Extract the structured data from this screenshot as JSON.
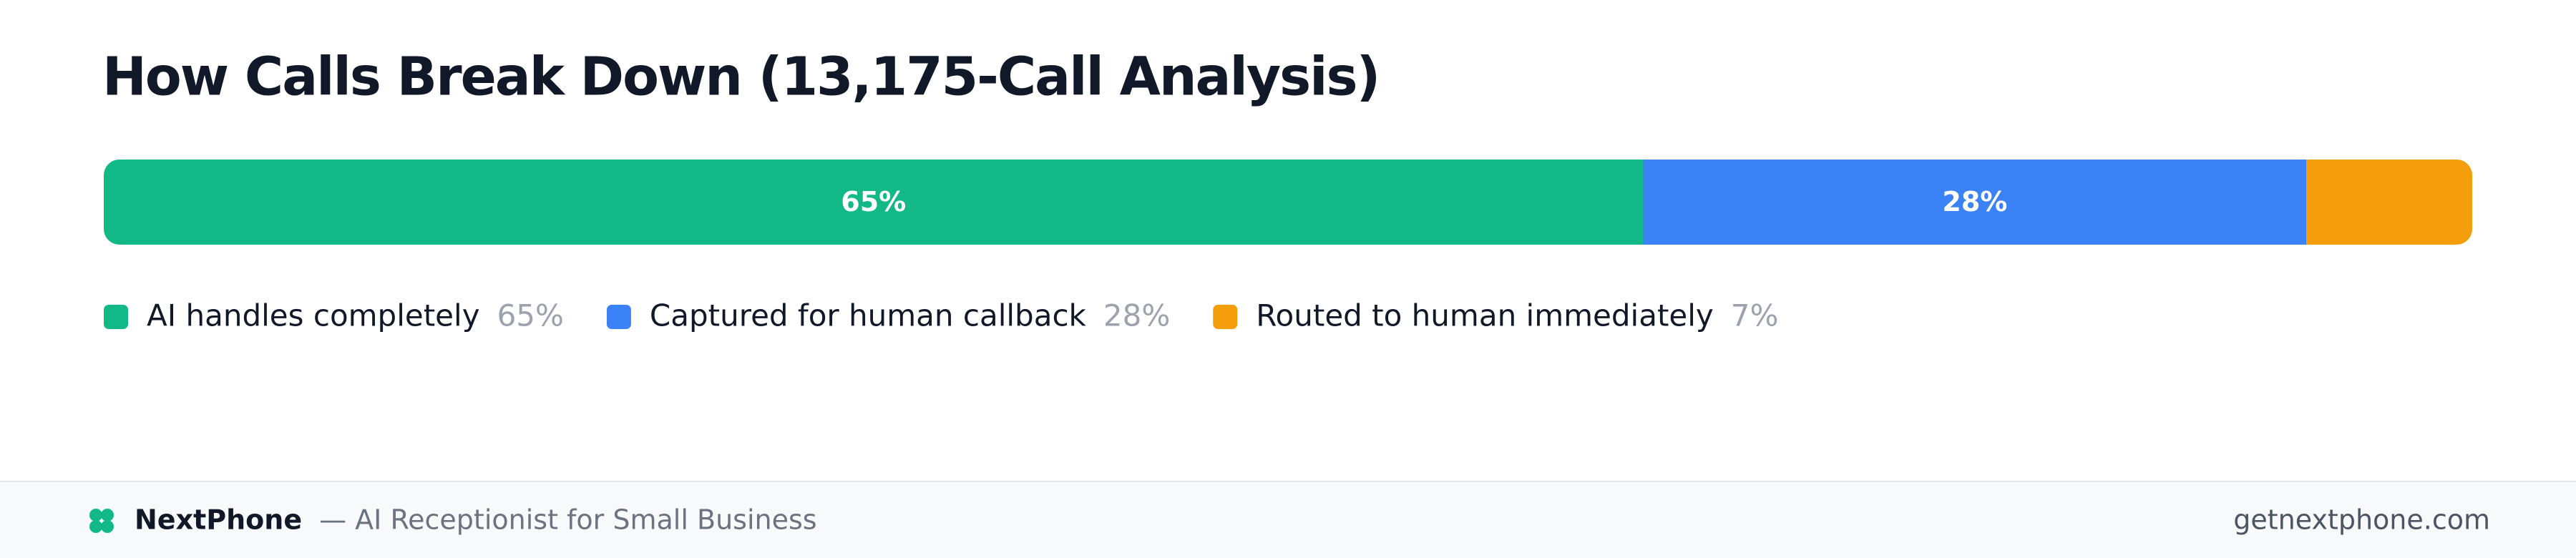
{
  "chart_data": {
    "type": "stacked-bar",
    "title": "How Calls Break Down (13,175-Call Analysis)",
    "categories": [
      "AI handles completely",
      "Captured for human callback",
      "Routed to human immediately"
    ],
    "values": [
      65,
      28,
      7
    ],
    "value_labels": [
      "65%",
      "28%",
      "7%"
    ],
    "colors": [
      "#12b886",
      "#3b82f6",
      "#f59e0b"
    ],
    "xlim": [
      0,
      100
    ]
  },
  "footer": {
    "brand": "NextPhone",
    "tagline": "— AI Receptionist for Small Business",
    "url": "getnextphone.com"
  }
}
